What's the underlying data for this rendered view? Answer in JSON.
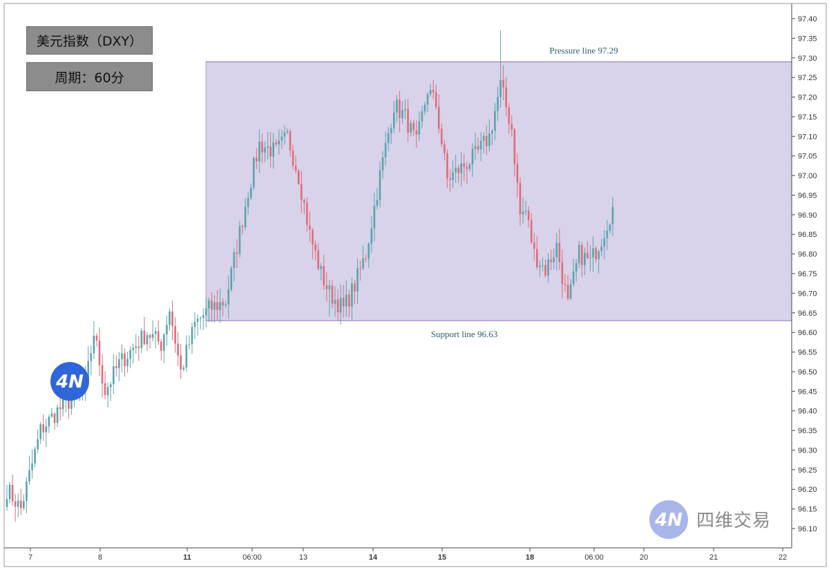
{
  "badges": {
    "title": "美元指数（DXY）",
    "period": "周期：60分"
  },
  "brand": {
    "logo_text": "4N",
    "name": "四维交易",
    "logo_color": "#2f66d9",
    "watermark_color": "#a9b6ea"
  },
  "chart_data": {
    "type": "candlestick",
    "title": "",
    "xlabel": "",
    "ylabel": "",
    "ylim": [
      96.08,
      97.4
    ],
    "y_ticks": [
      "97.40",
      "97.35",
      "97.30",
      "97.25",
      "97.20",
      "97.15",
      "97.10",
      "97.05",
      "97.00",
      "96.95",
      "96.90",
      "96.85",
      "96.80",
      "96.75",
      "96.70",
      "96.65",
      "96.60",
      "96.55",
      "96.50",
      "96.45",
      "96.40",
      "96.35",
      "96.30",
      "96.25",
      "96.20",
      "96.15",
      "96.10"
    ],
    "x_ticks": [
      {
        "label": "7",
        "bold": false
      },
      {
        "label": "8",
        "bold": false
      },
      {
        "label": "11",
        "bold": true
      },
      {
        "label": "06:00",
        "bold": false
      },
      {
        "label": "13",
        "bold": false
      },
      {
        "label": "14",
        "bold": true
      },
      {
        "label": "15",
        "bold": true
      },
      {
        "label": "18",
        "bold": true
      },
      {
        "label": "06:00",
        "bold": false
      },
      {
        "label": "20",
        "bold": false
      },
      {
        "label": "21",
        "bold": false
      },
      {
        "label": "22",
        "bold": false
      }
    ],
    "colors": {
      "up": "#5aa3ab",
      "down": "#e06b78",
      "zone": "#d8d2ea",
      "zone_border": "#8e6fb8"
    },
    "range_zone": {
      "pressure": {
        "value": 97.29,
        "label": "Pressure line 97.29"
      },
      "support": {
        "value": 96.63,
        "label": "Support line 96.63"
      }
    },
    "anchors": [
      {
        "i": 0,
        "v": 96.2
      },
      {
        "i": 5,
        "v": 96.15
      },
      {
        "i": 12,
        "v": 96.35
      },
      {
        "i": 18,
        "v": 96.4
      },
      {
        "i": 28,
        "v": 96.46
      },
      {
        "i": 31,
        "v": 96.6
      },
      {
        "i": 35,
        "v": 96.45
      },
      {
        "i": 40,
        "v": 96.52
      },
      {
        "i": 50,
        "v": 96.6
      },
      {
        "i": 55,
        "v": 96.57
      },
      {
        "i": 58,
        "v": 96.66
      },
      {
        "i": 62,
        "v": 96.5
      },
      {
        "i": 67,
        "v": 96.62
      },
      {
        "i": 72,
        "v": 96.66
      },
      {
        "i": 78,
        "v": 96.68
      },
      {
        "i": 82,
        "v": 96.82
      },
      {
        "i": 86,
        "v": 96.96
      },
      {
        "i": 90,
        "v": 97.08
      },
      {
        "i": 96,
        "v": 97.06
      },
      {
        "i": 100,
        "v": 97.1
      },
      {
        "i": 104,
        "v": 97.0
      },
      {
        "i": 108,
        "v": 96.85
      },
      {
        "i": 112,
        "v": 96.75
      },
      {
        "i": 115,
        "v": 96.7
      },
      {
        "i": 120,
        "v": 96.66
      },
      {
        "i": 124,
        "v": 96.72
      },
      {
        "i": 128,
        "v": 96.8
      },
      {
        "i": 133,
        "v": 97.0
      },
      {
        "i": 138,
        "v": 97.18
      },
      {
        "i": 142,
        "v": 97.15
      },
      {
        "i": 146,
        "v": 97.08
      },
      {
        "i": 150,
        "v": 97.22
      },
      {
        "i": 153,
        "v": 97.18
      },
      {
        "i": 157,
        "v": 96.99
      },
      {
        "i": 162,
        "v": 97.02
      },
      {
        "i": 167,
        "v": 97.05
      },
      {
        "i": 172,
        "v": 97.1
      },
      {
        "i": 176,
        "v": 97.23
      },
      {
        "i": 180,
        "v": 97.12
      },
      {
        "i": 183,
        "v": 96.9
      },
      {
        "i": 185,
        "v": 96.91
      },
      {
        "i": 188,
        "v": 96.8
      },
      {
        "i": 192,
        "v": 96.76
      },
      {
        "i": 196,
        "v": 96.82
      },
      {
        "i": 200,
        "v": 96.67
      },
      {
        "i": 204,
        "v": 96.8
      },
      {
        "i": 208,
        "v": 96.78
      },
      {
        "i": 212,
        "v": 96.84
      },
      {
        "i": 216,
        "v": 96.92
      }
    ],
    "seed": 7,
    "last_close": 96.92
  }
}
